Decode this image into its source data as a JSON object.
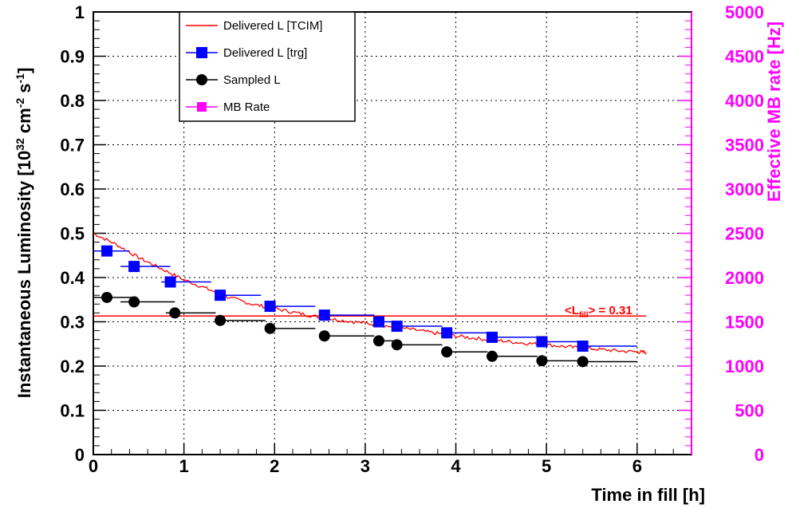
{
  "chart_data": {
    "type": "line",
    "title": "",
    "xlabel": "Time in fill [h]",
    "ylabel_parts": {
      "main": "Instantaneous Luminosity [10",
      "exp1": "32",
      "mid": " cm",
      "exp2": "-2",
      "mid2": " s",
      "exp3": "-1",
      "end": "]"
    },
    "y2label": "Effective MB rate [Hz]",
    "xlim": [
      0,
      6.6
    ],
    "ylim": [
      0,
      1
    ],
    "y2lim": [
      0,
      5000
    ],
    "x_ticks": [
      "0",
      "1",
      "2",
      "3",
      "4",
      "5",
      "6"
    ],
    "y_ticks": [
      "0",
      "0.1",
      "0.2",
      "0.3",
      "0.4",
      "0.5",
      "0.6",
      "0.7",
      "0.8",
      "0.9",
      "1"
    ],
    "y2_ticks": [
      "0",
      "500",
      "1000",
      "1500",
      "2000",
      "2500",
      "3000",
      "3500",
      "4000",
      "4500",
      "5000"
    ],
    "grid": true,
    "legend_position": "top-left",
    "series": [
      {
        "name": "Delivered L [TCIM]",
        "color": "#ff0000",
        "style": "line",
        "x": [
          0.0,
          0.25,
          0.5,
          0.75,
          1.0,
          1.25,
          1.5,
          1.75,
          2.0,
          2.25,
          2.5,
          2.75,
          3.0,
          3.25,
          3.5,
          3.75,
          4.0,
          4.25,
          4.5,
          4.75,
          5.0,
          5.25,
          5.5,
          5.75,
          6.0,
          6.1
        ],
        "y": [
          0.5,
          0.475,
          0.445,
          0.42,
          0.395,
          0.375,
          0.355,
          0.34,
          0.33,
          0.32,
          0.31,
          0.303,
          0.297,
          0.29,
          0.283,
          0.275,
          0.268,
          0.262,
          0.257,
          0.252,
          0.248,
          0.243,
          0.239,
          0.235,
          0.232,
          0.231
        ]
      },
      {
        "name": "Delivered L [trg]",
        "color": "#0000ff",
        "style": "square-markers",
        "x": [
          0.15,
          0.45,
          0.85,
          1.4,
          1.95,
          2.55,
          3.15,
          3.35,
          3.9,
          4.4,
          4.95,
          5.4
        ],
        "xerr_low": [
          0.15,
          0.15,
          0.1,
          0.0,
          0.0,
          0.0,
          0.0,
          0.0,
          0.0,
          0.0,
          0.0,
          0.0
        ],
        "xerr_high": [
          0.25,
          0.4,
          0.45,
          0.45,
          0.5,
          0.55,
          0.2,
          0.5,
          0.45,
          0.5,
          0.4,
          0.6
        ],
        "y": [
          0.46,
          0.425,
          0.39,
          0.36,
          0.335,
          0.315,
          0.3,
          0.29,
          0.275,
          0.265,
          0.255,
          0.245
        ]
      },
      {
        "name": "Sampled L",
        "color": "#000000",
        "style": "circle-markers",
        "x": [
          0.15,
          0.45,
          0.9,
          1.4,
          1.95,
          2.55,
          3.15,
          3.35,
          3.9,
          4.4,
          4.95,
          5.4
        ],
        "xerr_low": [
          0.15,
          0.15,
          0.1,
          0.0,
          0.0,
          0.0,
          0.0,
          0.0,
          0.0,
          0.0,
          0.0,
          0.0
        ],
        "xerr_high": [
          0.3,
          0.45,
          0.45,
          0.5,
          0.5,
          0.55,
          0.2,
          0.5,
          0.45,
          0.5,
          0.45,
          0.6
        ],
        "y": [
          0.355,
          0.345,
          0.32,
          0.303,
          0.285,
          0.268,
          0.257,
          0.248,
          0.232,
          0.222,
          0.212,
          0.21
        ]
      },
      {
        "name": "MB Rate",
        "color": "#ff00ff",
        "style": "square-markers",
        "x": [],
        "y": []
      }
    ],
    "reference_line": {
      "y": 0.313,
      "x_from": 0,
      "x_to": 6.1,
      "color": "#ff0000",
      "label_main": "<L",
      "label_sub": "fill",
      "label_rest": "> = 0.31"
    }
  }
}
